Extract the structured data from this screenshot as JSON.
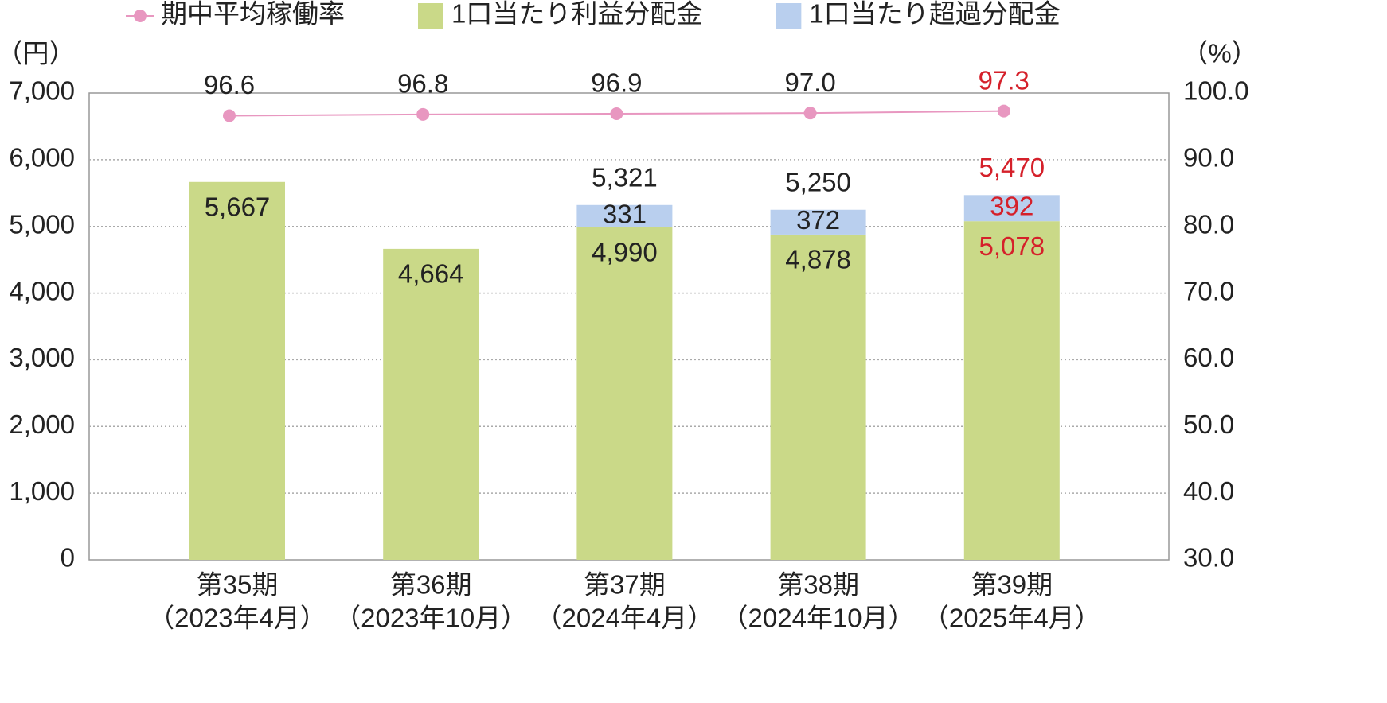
{
  "chart_data": {
    "type": "bar",
    "stacked": true,
    "categories": [
      [
        "第35期",
        "（2023年4月）"
      ],
      [
        "第36期",
        "（2023年10月）"
      ],
      [
        "第37期",
        "（2024年4月）"
      ],
      [
        "第38期",
        "（2024年10月）"
      ],
      [
        "第39期",
        "（2025年4月）"
      ]
    ],
    "series": [
      {
        "name": "期中平均稼働率",
        "type": "line",
        "axis": "y2",
        "color": "#e897c0",
        "values": [
          96.6,
          96.8,
          96.9,
          97.0,
          97.3
        ],
        "value_labels": [
          "96.6",
          "96.8",
          "96.9",
          "97.0",
          "97.3"
        ]
      },
      {
        "name": "1口当たり利益分配金",
        "color": "#cad988",
        "values": [
          5667,
          4664,
          4990,
          4878,
          5078
        ],
        "value_labels": [
          "5,667",
          "4,664",
          "4,990",
          "4,878",
          "5,078"
        ]
      },
      {
        "name": "1口当たり超過分配金",
        "color": "#b9cfee",
        "values": [
          null,
          null,
          331,
          372,
          392
        ]
      }
    ],
    "totals": {
      "values": [
        null,
        null,
        5321,
        5250,
        5470
      ],
      "value_labels": [
        null,
        null,
        "5,321",
        "5,250",
        "5,470"
      ]
    },
    "y_label": "（円）",
    "y2_label": "（%）",
    "ylim": [
      0,
      7000
    ],
    "yticks": [
      {
        "value": 0,
        "label": "0"
      },
      {
        "value": 1000,
        "label": "1,000"
      },
      {
        "value": 2000,
        "label": "2,000"
      },
      {
        "value": 3000,
        "label": "3,000"
      },
      {
        "value": 4000,
        "label": "4,000"
      },
      {
        "value": 5000,
        "label": "5,000"
      },
      {
        "value": 6000,
        "label": "6,000"
      },
      {
        "value": 7000,
        "label": "7,000"
      }
    ],
    "y2lim": [
      30,
      100
    ],
    "y2ticks": [
      {
        "value": 30,
        "label": "30.0"
      },
      {
        "value": 40,
        "label": "40.0"
      },
      {
        "value": 50,
        "label": "50.0"
      },
      {
        "value": 60,
        "label": "60.0"
      },
      {
        "value": 70,
        "label": "70.0"
      },
      {
        "value": 80,
        "label": "80.0"
      },
      {
        "value": 90,
        "label": "90.0"
      },
      {
        "value": 100,
        "label": "100.0"
      }
    ],
    "grid": true,
    "highlight_index": 4,
    "highlight_color": "#d5202a"
  }
}
